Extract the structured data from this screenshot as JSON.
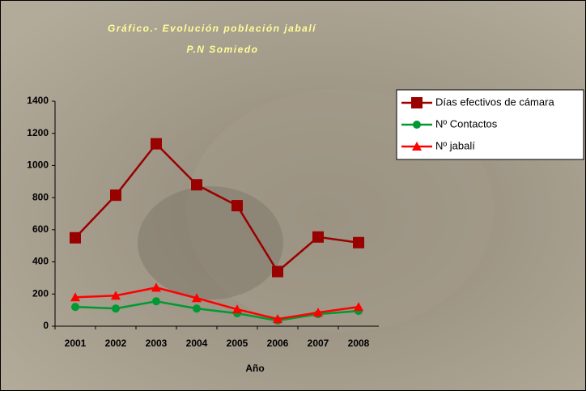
{
  "chart_data": {
    "type": "line",
    "title": "Gráfico.- Evolución población jabalí",
    "subtitle": "P.N Somiedo",
    "x_label": "Año",
    "categories": [
      "2001",
      "2002",
      "2003",
      "2004",
      "2005",
      "2006",
      "2007",
      "2008"
    ],
    "series": [
      {
        "name": "Días efectivos de cámara",
        "color": "#990000",
        "marker": "square",
        "values": [
          550,
          815,
          1135,
          880,
          750,
          340,
          555,
          520
        ]
      },
      {
        "name": "Nº Contactos",
        "color": "#009933",
        "marker": "circle",
        "values": [
          120,
          110,
          155,
          110,
          80,
          35,
          75,
          95
        ]
      },
      {
        "name": "Nº jabalí",
        "color": "#ff0000",
        "marker": "triangle",
        "values": [
          180,
          190,
          240,
          175,
          105,
          45,
          85,
          120
        ]
      }
    ],
    "ylim": [
      0,
      1400
    ],
    "yticks": [
      0,
      200,
      400,
      600,
      800,
      1000,
      1200,
      1400
    ],
    "grid": false,
    "legend": "top-right"
  }
}
